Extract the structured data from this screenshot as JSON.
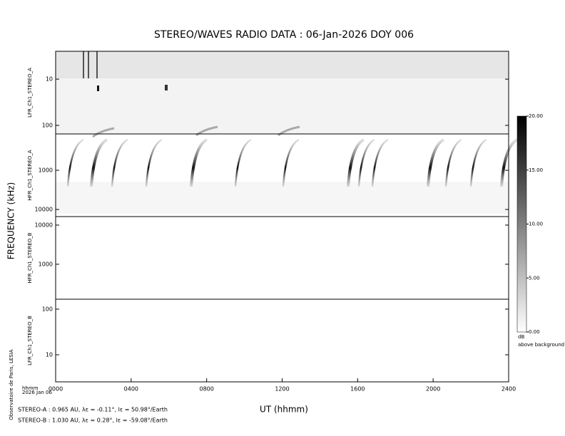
{
  "chart_data": {
    "type": "spectrogram",
    "title": "STEREO/WAVES  RADIO  DATA : 06-Jan-2026  DOY 006",
    "ylabel": "FREQUENCY (kHz)",
    "xlabel": "UT (hhmm)",
    "xlim": [
      0,
      24
    ],
    "xticks": [
      {
        "value": 0,
        "label": "0000"
      },
      {
        "value": 4,
        "label": "0400"
      },
      {
        "value": 8,
        "label": "0800"
      },
      {
        "value": 12,
        "label": "1200"
      },
      {
        "value": 16,
        "label": "1600"
      },
      {
        "value": 20,
        "label": "2000"
      },
      {
        "value": 24,
        "label": "2400"
      }
    ],
    "panels": [
      {
        "name": "LFR_Ch1_STEREO_A",
        "log": true,
        "y_inverted": true,
        "ylim": [
          2.5,
          153
        ],
        "yticks": [
          10,
          100
        ]
      },
      {
        "name": "HFR_Ch1_STEREO_A",
        "log": true,
        "y_inverted": true,
        "ylim": [
          118,
          15200
        ],
        "yticks": [
          1000,
          10000
        ]
      },
      {
        "name": "HFR_Ch1_STEREO_B",
        "log": true,
        "y_inverted": false,
        "ylim": [
          128,
          16500
        ],
        "yticks": [
          1000,
          10000
        ]
      },
      {
        "name": "LFR_Ch1_STEREO_B",
        "log": true,
        "y_inverted": false,
        "ylim": [
          2.55,
          165
        ],
        "yticks": [
          10,
          100
        ]
      }
    ],
    "colorbar": {
      "clim": [
        0,
        20
      ],
      "ticks": [
        {
          "value": 0,
          "label": "0.00"
        },
        {
          "value": 5,
          "label": "5.00"
        },
        {
          "value": 10,
          "label": "10.00"
        },
        {
          "value": 15,
          "label": "15.00"
        },
        {
          "value": 20,
          "label": "20.00"
        }
      ],
      "label": "dB",
      "sublabel": "above background"
    },
    "corner_unit": "hhmm",
    "corner_date": "2026 Jan 06",
    "credit": "Observatoire de Paris, LESIA",
    "notes": [
      "STEREO-A : 0.965 AU, λε = -0.11°, lε = 50.98°/Earth",
      "STEREO-B : 1.030 AU, λε = 0.28°, lε = -59.08°/Earth"
    ]
  }
}
